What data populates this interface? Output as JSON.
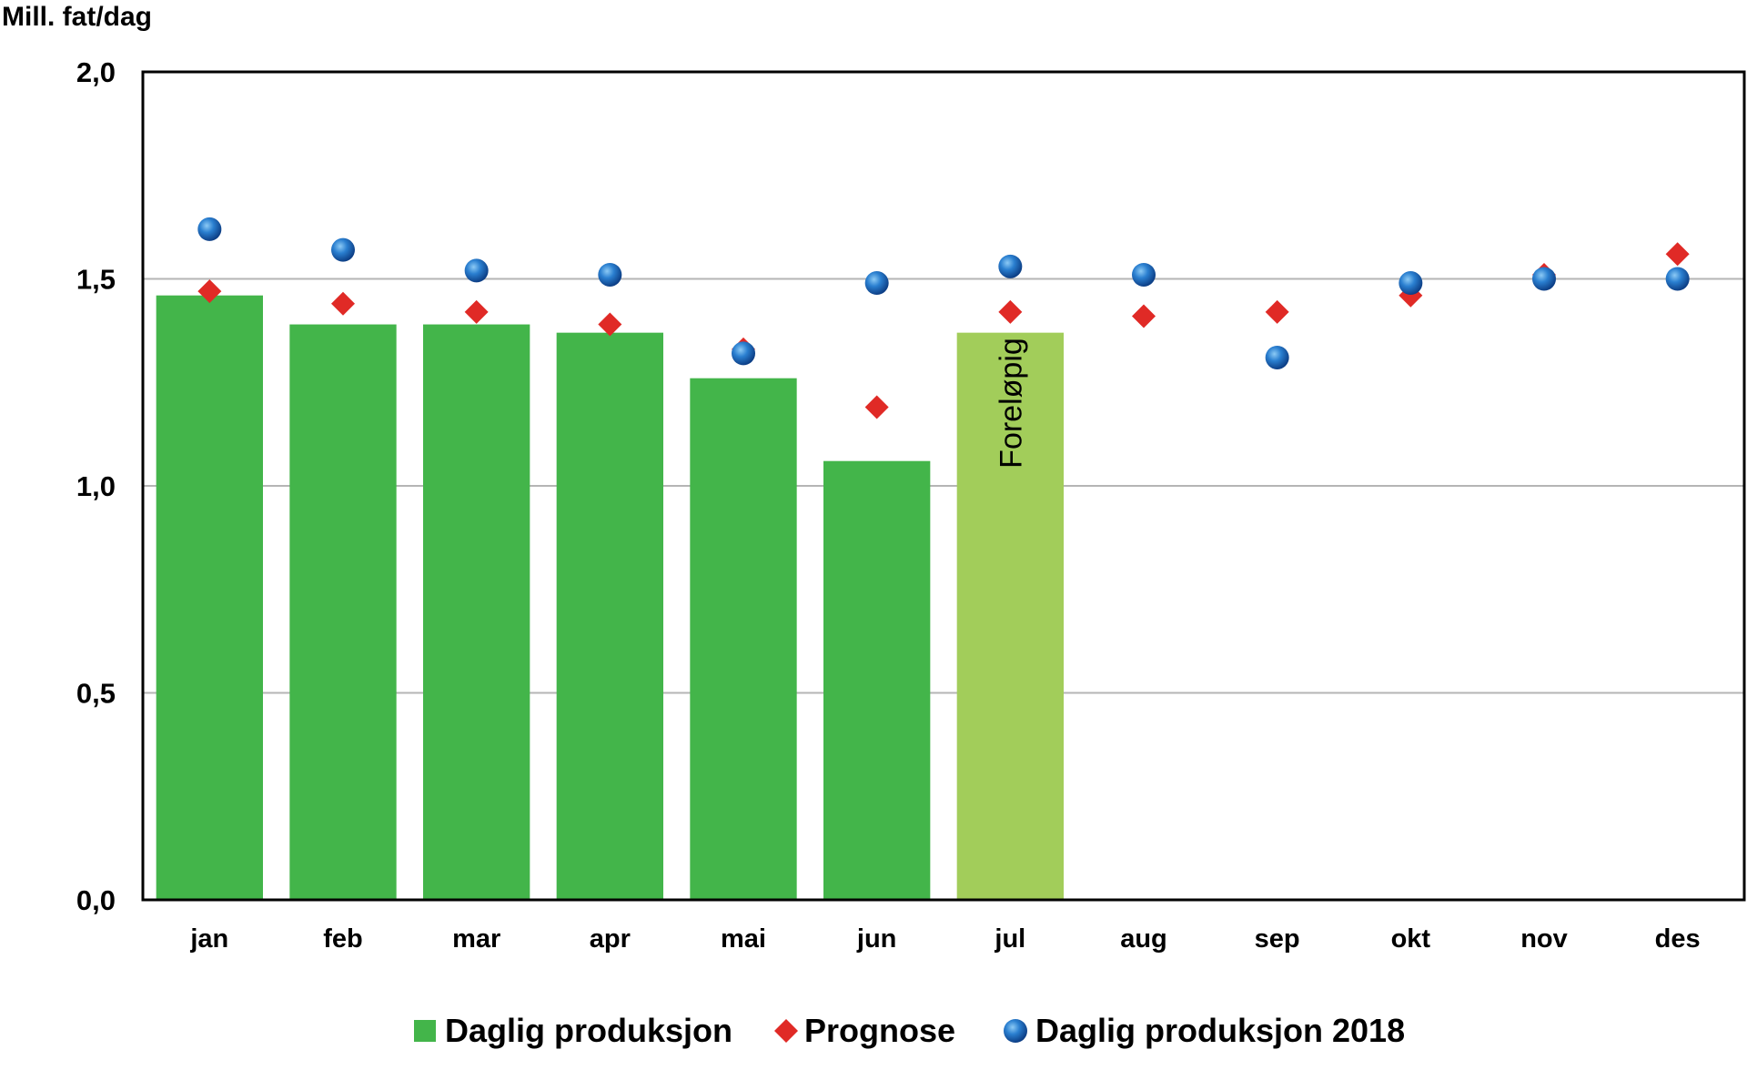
{
  "chart_data": {
    "type": "bar",
    "ylabel": "Mill. fat/dag",
    "ylim": [
      0,
      2.0
    ],
    "yticks": [
      "0,0",
      "0,5",
      "1,0",
      "1,5",
      "2,0"
    ],
    "categories": [
      "jan",
      "feb",
      "mar",
      "apr",
      "mai",
      "jun",
      "jul",
      "aug",
      "sep",
      "okt",
      "nov",
      "des"
    ],
    "grid": true,
    "legend_position": "bottom",
    "annotation": "Foreløpig",
    "series": [
      {
        "name": "Daglig produksjon",
        "kind": "bar",
        "color": "#43b54a",
        "values": [
          1.46,
          1.39,
          1.39,
          1.37,
          1.26,
          1.06,
          1.37,
          null,
          null,
          null,
          null,
          null
        ],
        "preliminary_color": "#a2cd5a",
        "preliminary_index": 6
      },
      {
        "name": "Prognose",
        "kind": "diamond",
        "color": "#e02a26",
        "values": [
          1.47,
          1.44,
          1.42,
          1.39,
          1.33,
          1.19,
          1.42,
          1.41,
          1.42,
          1.46,
          1.51,
          1.56
        ]
      },
      {
        "name": "Daglig produksjon 2018",
        "kind": "circle",
        "color": "#1e6fc0",
        "values": [
          1.62,
          1.57,
          1.52,
          1.51,
          1.32,
          1.49,
          1.53,
          1.51,
          1.31,
          1.49,
          1.5,
          1.5
        ]
      }
    ]
  }
}
